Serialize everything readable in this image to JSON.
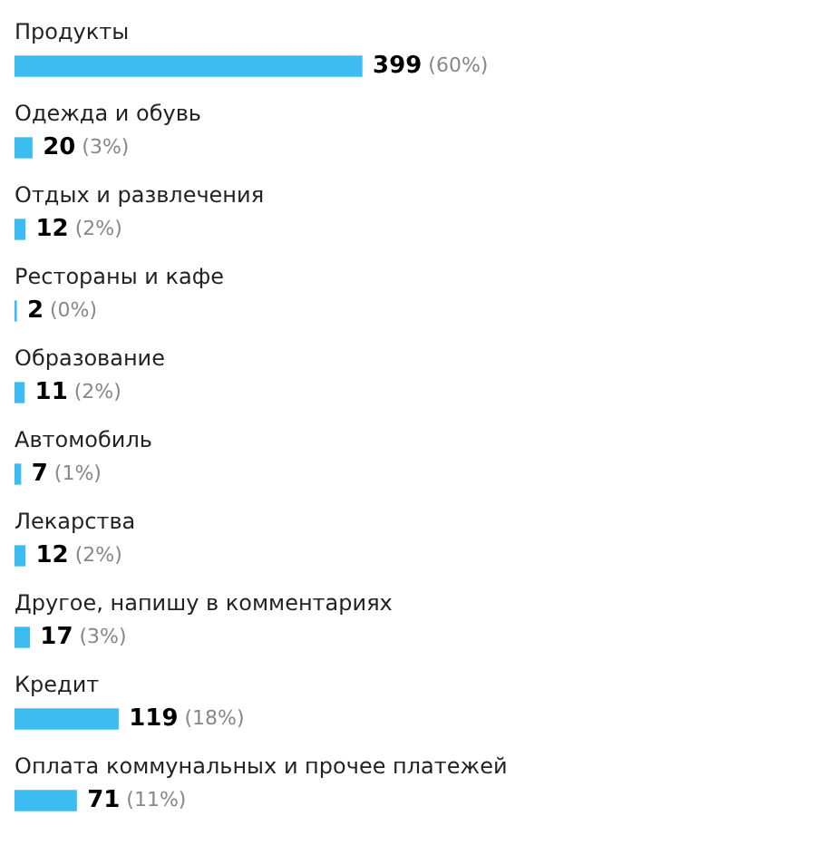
{
  "chart_data": {
    "type": "bar",
    "orientation": "horizontal",
    "color": "#3cbcf0",
    "categories": [
      "Продукты",
      "Одежда и обувь",
      "Отдых и развлечения",
      "Рестораны и кафе",
      "Образование",
      "Автомобиль",
      "Лекарства",
      "Другое, напишу в комментариях",
      "Кредит",
      "Оплата коммунальных и прочее платежей"
    ],
    "values": [
      399,
      20,
      12,
      2,
      11,
      7,
      12,
      17,
      119,
      71
    ],
    "value_labels": [
      "399 (60%)",
      "20 (3%)",
      "12 (2%)",
      "2 (0%)",
      "11 (2%)",
      "7 (1%)",
      "12 (2%)",
      "17 (3%)",
      "119 (18%)",
      "71 (11%)"
    ]
  }
}
